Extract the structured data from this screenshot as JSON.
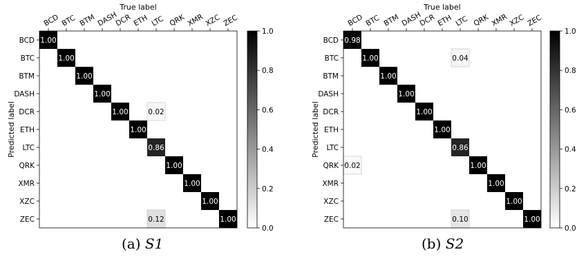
{
  "chart_data": [
    {
      "type": "heatmap",
      "caption_prefix": "(a)",
      "caption_name": "S1",
      "xlabel": "True label",
      "ylabel": "Predicted label",
      "labels": [
        "BCD",
        "BTC",
        "BTM",
        "DASH",
        "DCR",
        "ETH",
        "LTC",
        "QRK",
        "XMR",
        "XZC",
        "ZEC"
      ],
      "cells": [
        {
          "row": 0,
          "col": 0,
          "value": 1.0
        },
        {
          "row": 1,
          "col": 1,
          "value": 1.0
        },
        {
          "row": 2,
          "col": 2,
          "value": 1.0
        },
        {
          "row": 3,
          "col": 3,
          "value": 1.0
        },
        {
          "row": 4,
          "col": 4,
          "value": 1.0
        },
        {
          "row": 4,
          "col": 6,
          "value": 0.02
        },
        {
          "row": 5,
          "col": 5,
          "value": 1.0
        },
        {
          "row": 6,
          "col": 6,
          "value": 0.86
        },
        {
          "row": 7,
          "col": 7,
          "value": 1.0
        },
        {
          "row": 8,
          "col": 8,
          "value": 1.0
        },
        {
          "row": 9,
          "col": 9,
          "value": 1.0
        },
        {
          "row": 10,
          "col": 6,
          "value": 0.12
        },
        {
          "row": 10,
          "col": 10,
          "value": 1.0
        }
      ],
      "colorbar": {
        "range": [
          0,
          1
        ],
        "ticks": [
          "0.0",
          "0.2",
          "0.4",
          "0.6",
          "0.8",
          "1.0"
        ],
        "colors": [
          "#ffffff",
          "#000000"
        ]
      }
    },
    {
      "type": "heatmap",
      "caption_prefix": "(b)",
      "caption_name": "S2",
      "xlabel": "True label",
      "ylabel": "Predicted label",
      "labels": [
        "BCD",
        "BTC",
        "BTM",
        "DASH",
        "DCR",
        "ETH",
        "LTC",
        "QRK",
        "XMR",
        "XZC",
        "ZEC"
      ],
      "cells": [
        {
          "row": 0,
          "col": 0,
          "value": 0.98
        },
        {
          "row": 1,
          "col": 1,
          "value": 1.0
        },
        {
          "row": 1,
          "col": 6,
          "value": 0.04
        },
        {
          "row": 2,
          "col": 2,
          "value": 1.0
        },
        {
          "row": 3,
          "col": 3,
          "value": 1.0
        },
        {
          "row": 4,
          "col": 4,
          "value": 1.0
        },
        {
          "row": 5,
          "col": 5,
          "value": 1.0
        },
        {
          "row": 6,
          "col": 6,
          "value": 0.86
        },
        {
          "row": 7,
          "col": 0,
          "value": 0.02
        },
        {
          "row": 7,
          "col": 7,
          "value": 1.0
        },
        {
          "row": 8,
          "col": 8,
          "value": 1.0
        },
        {
          "row": 9,
          "col": 9,
          "value": 1.0
        },
        {
          "row": 10,
          "col": 6,
          "value": 0.1
        },
        {
          "row": 10,
          "col": 10,
          "value": 1.0
        }
      ],
      "colorbar": {
        "range": [
          0,
          1
        ],
        "ticks": [
          "0.0",
          "0.2",
          "0.4",
          "0.6",
          "0.8",
          "1.0"
        ],
        "colors": [
          "#ffffff",
          "#000000"
        ]
      }
    }
  ]
}
